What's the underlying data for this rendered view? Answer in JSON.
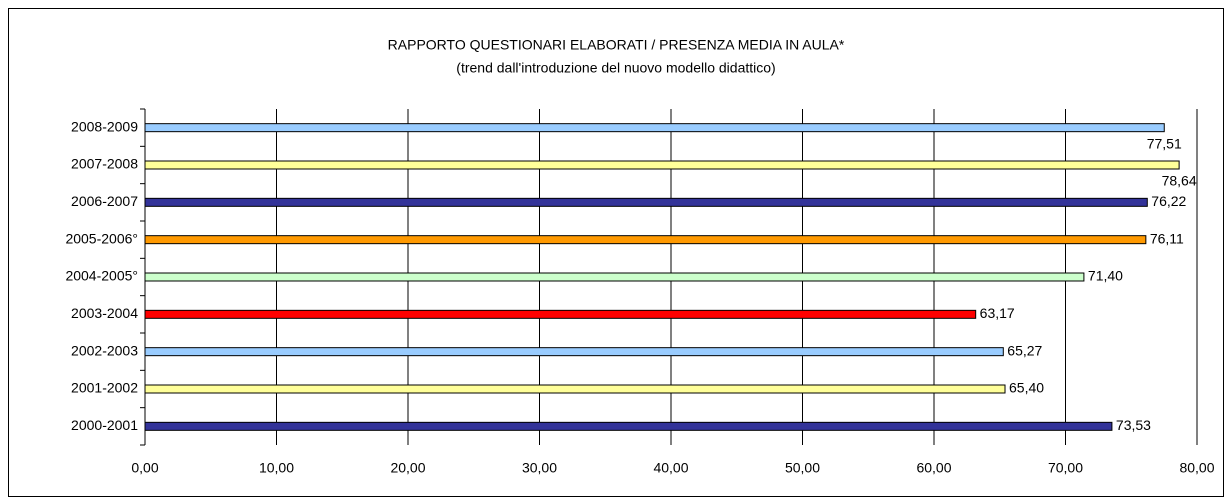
{
  "chart_data": {
    "type": "bar",
    "orientation": "horizontal",
    "title": "RAPPORTO QUESTIONARI ELABORATI / PRESENZA MEDIA IN AULA*",
    "subtitle": "(trend dall'introduzione del nuovo modello didattico)",
    "categories": [
      "2008-2009",
      "2007-2008",
      "2006-2007",
      "2005-2006°",
      "2004-2005°",
      "2003-2004",
      "2002-2003",
      "2001-2002",
      "2000-2001"
    ],
    "values": [
      77.51,
      78.64,
      76.22,
      76.11,
      71.4,
      63.17,
      65.27,
      65.4,
      73.53
    ],
    "value_labels": [
      "77,51",
      "78,64",
      "76,22",
      "76,11",
      "71,40",
      "63,17",
      "65,27",
      "65,40",
      "73,53"
    ],
    "colors": [
      "#99ccff",
      "#ffff99",
      "#333399",
      "#ff9900",
      "#ccffcc",
      "#ff0000",
      "#99ccff",
      "#ffff99",
      "#333399"
    ],
    "xlim": [
      0,
      80
    ],
    "xticks": [
      {
        "value": 0,
        "label": "0,00"
      },
      {
        "value": 10,
        "label": "10,00"
      },
      {
        "value": 20,
        "label": "20,00"
      },
      {
        "value": 30,
        "label": "30,00"
      },
      {
        "value": 40,
        "label": "40,00"
      },
      {
        "value": 50,
        "label": "50,00"
      },
      {
        "value": 60,
        "label": "60,00"
      },
      {
        "value": 70,
        "label": "70,00"
      },
      {
        "value": 80,
        "label": "80,00"
      }
    ],
    "grid": true
  }
}
